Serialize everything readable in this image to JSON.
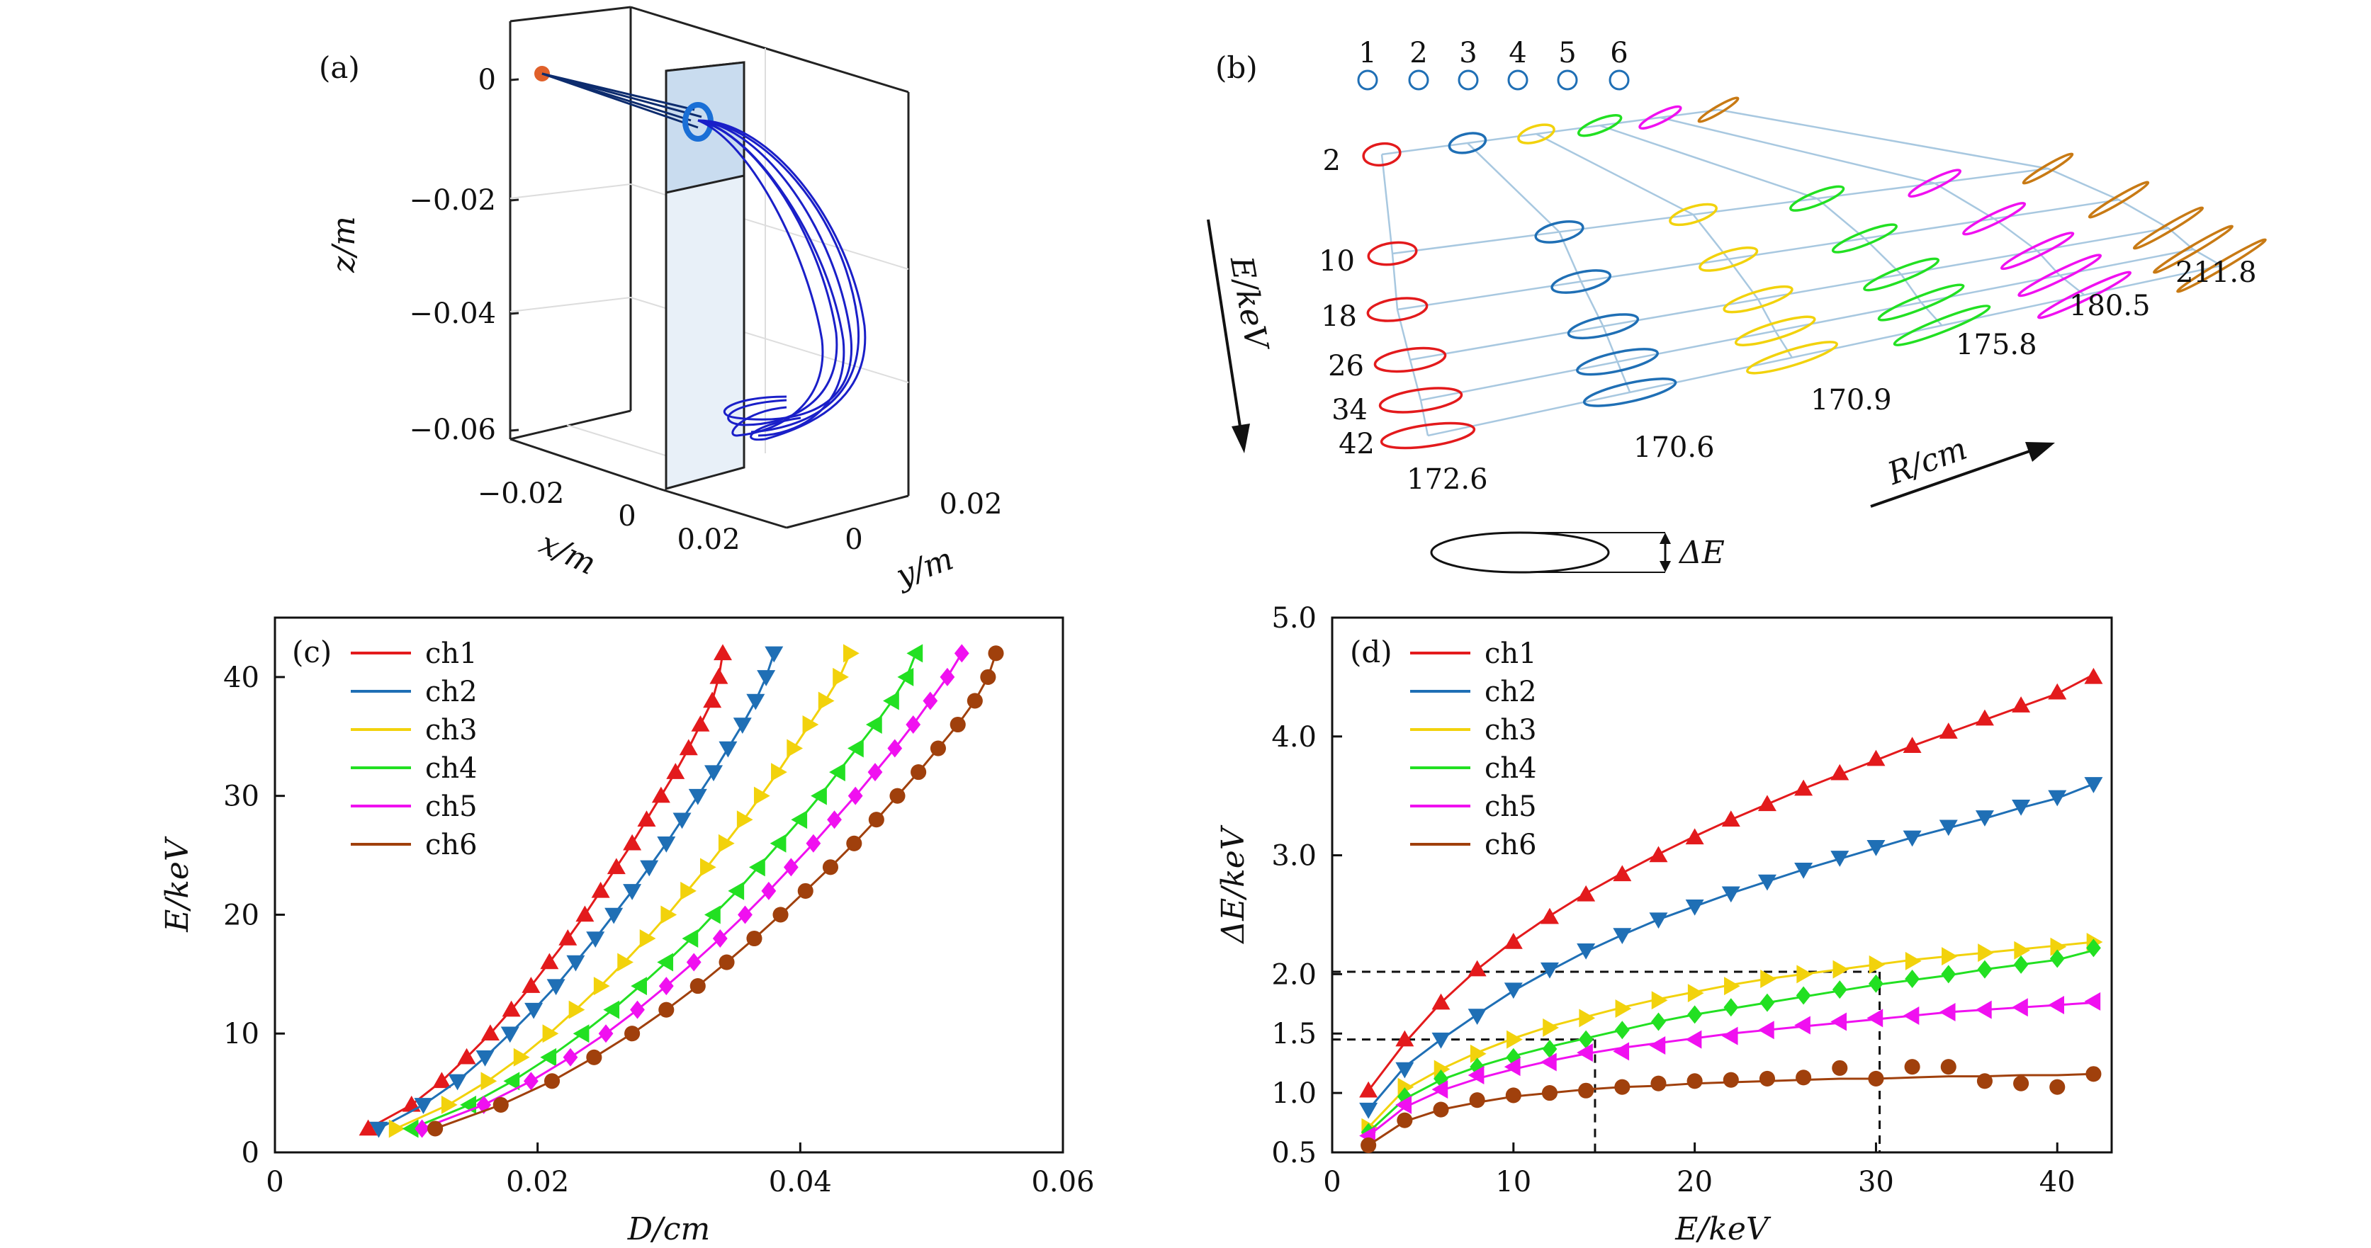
{
  "chart_data": [
    {
      "panel": "a",
      "type": "3d-trajectory",
      "panel_label": "(a)",
      "xlabel": "x/m",
      "ylabel": "y/m",
      "zlabel": "z/m",
      "z_ticks": [
        "0",
        "−0.02",
        "−0.04",
        "−0.06"
      ],
      "x_ticks": [
        "−0.02",
        "0",
        "0.02"
      ],
      "y_ticks": [
        "0.02",
        "0"
      ],
      "colors": {
        "source": "#e0602a",
        "lines": "#1a1fc8",
        "plate": "#dbe8f5"
      }
    },
    {
      "panel": "b",
      "type": "diagram",
      "panel_label": "(b)",
      "channels": [
        "1",
        "2",
        "3",
        "4",
        "5",
        "6"
      ],
      "energy_labels": [
        "2",
        "10",
        "18",
        "26",
        "34",
        "42"
      ],
      "radius_labels": [
        "172.6",
        "170.6",
        "170.9",
        "175.8",
        "180.5",
        "211.8"
      ],
      "energy_axis_label": "E/keV",
      "radius_axis_label": "R/cm",
      "delta_label": "ΔE",
      "channel_colors": [
        "#e31a1c",
        "#1f6fb5",
        "#f2d20c",
        "#22e022",
        "#f010f0",
        "#c87a14"
      ]
    },
    {
      "panel": "c",
      "type": "line",
      "panel_label": "(c)",
      "xlabel": "D/cm",
      "ylabel": "E/keV",
      "xlim": [
        0,
        0.06
      ],
      "ylim": [
        0,
        45
      ],
      "x_ticks": [
        "0",
        "0.02",
        "0.04",
        "0.06"
      ],
      "y_ticks": [
        "0",
        "10",
        "20",
        "30",
        "40"
      ],
      "x_tick_values": [
        0,
        0.02,
        0.04,
        0.06
      ],
      "y_tick_values": [
        0,
        10,
        20,
        30,
        40
      ],
      "E": [
        2,
        4,
        6,
        8,
        10,
        12,
        14,
        16,
        18,
        20,
        22,
        24,
        26,
        28,
        30,
        32,
        34,
        36,
        38,
        40,
        42
      ],
      "series": [
        {
          "name": "ch1",
          "color": "#e31a1c",
          "marker": "triangle-up",
          "D": [
            0.0071,
            0.0104,
            0.0127,
            0.0146,
            0.0164,
            0.018,
            0.0195,
            0.0209,
            0.0223,
            0.0236,
            0.0248,
            0.026,
            0.0272,
            0.0283,
            0.0294,
            0.0305,
            0.0315,
            0.0324,
            0.0333,
            0.0338,
            0.0341
          ]
        },
        {
          "name": "ch2",
          "color": "#1f6fb5",
          "marker": "triangle-down",
          "D": [
            0.0079,
            0.0113,
            0.0139,
            0.016,
            0.0179,
            0.0197,
            0.0214,
            0.0229,
            0.0244,
            0.0258,
            0.0272,
            0.0285,
            0.0298,
            0.031,
            0.0322,
            0.0334,
            0.0345,
            0.0356,
            0.0366,
            0.0374,
            0.038
          ]
        },
        {
          "name": "ch3",
          "color": "#f2d20c",
          "marker": "triangle-right",
          "D": [
            0.0092,
            0.0132,
            0.0162,
            0.0187,
            0.0209,
            0.0229,
            0.0248,
            0.0266,
            0.0283,
            0.0299,
            0.0314,
            0.0329,
            0.0343,
            0.0357,
            0.037,
            0.0383,
            0.0395,
            0.0407,
            0.0419,
            0.043,
            0.0438
          ]
        },
        {
          "name": "ch4",
          "color": "#22e022",
          "marker": "triangle-left",
          "D": [
            0.0104,
            0.0148,
            0.0181,
            0.0209,
            0.0234,
            0.0257,
            0.0278,
            0.0298,
            0.0317,
            0.0334,
            0.0352,
            0.0368,
            0.0384,
            0.04,
            0.0415,
            0.0429,
            0.0443,
            0.0457,
            0.047,
            0.0481,
            0.0488
          ]
        },
        {
          "name": "ch5",
          "color": "#f010f0",
          "marker": "diamond",
          "D": [
            0.0112,
            0.0159,
            0.0195,
            0.0225,
            0.0252,
            0.0276,
            0.0298,
            0.0319,
            0.0339,
            0.0358,
            0.0376,
            0.0393,
            0.041,
            0.0426,
            0.0442,
            0.0457,
            0.0472,
            0.0486,
            0.0499,
            0.0512,
            0.0523
          ]
        },
        {
          "name": "ch6",
          "color": "#a0400c",
          "marker": "circle",
          "D": [
            0.0122,
            0.0172,
            0.0211,
            0.0243,
            0.0272,
            0.0298,
            0.0322,
            0.0344,
            0.0365,
            0.0385,
            0.0404,
            0.0423,
            0.0441,
            0.0458,
            0.0474,
            0.049,
            0.0505,
            0.052,
            0.0533,
            0.0543,
            0.0549
          ]
        }
      ]
    },
    {
      "panel": "d",
      "type": "line",
      "panel_label": "(d)",
      "xlabel": "E/keV",
      "ylabel": "ΔE/keV",
      "xlim": [
        0,
        43
      ],
      "ylim": [
        0.5,
        5.0
      ],
      "x_ticks": [
        "0",
        "10",
        "20",
        "30",
        "40"
      ],
      "y_ticks": [
        "0.5",
        "1.0",
        "1.5",
        "2.0",
        "3.0",
        "4.0",
        "5.0"
      ],
      "x_tick_values": [
        0,
        10,
        20,
        30,
        40
      ],
      "y_tick_values": [
        0.5,
        1.0,
        1.5,
        2.0,
        3.0,
        4.0,
        5.0
      ],
      "E": [
        2,
        4,
        6,
        8,
        10,
        12,
        14,
        16,
        18,
        20,
        22,
        24,
        26,
        28,
        30,
        32,
        34,
        36,
        38,
        40,
        42
      ],
      "series": [
        {
          "name": "ch1",
          "color": "#e31a1c",
          "marker": "triangle-up",
          "values": [
            1.02,
            1.45,
            1.76,
            2.04,
            2.27,
            2.48,
            2.67,
            2.84,
            3.0,
            3.15,
            3.3,
            3.43,
            3.56,
            3.69,
            3.81,
            3.92,
            4.04,
            4.15,
            4.26,
            4.37,
            4.5
          ]
        },
        {
          "name": "ch2",
          "color": "#1f6fb5",
          "marker": "triangle-down",
          "values": [
            0.86,
            1.2,
            1.45,
            1.65,
            1.87,
            2.04,
            2.2,
            2.33,
            2.46,
            2.57,
            2.68,
            2.78,
            2.88,
            2.98,
            3.07,
            3.15,
            3.24,
            3.32,
            3.41,
            3.49,
            3.6
          ]
        },
        {
          "name": "ch3",
          "color": "#f2d20c",
          "marker": "triangle-right",
          "values": [
            0.71,
            1.05,
            1.2,
            1.33,
            1.45,
            1.55,
            1.63,
            1.71,
            1.78,
            1.84,
            1.9,
            1.96,
            2.0,
            2.04,
            2.08,
            2.11,
            2.15,
            2.18,
            2.2,
            2.23,
            2.27
          ]
        },
        {
          "name": "ch4",
          "color": "#22e022",
          "marker": "diamond",
          "values": [
            0.67,
            0.97,
            1.12,
            1.22,
            1.3,
            1.37,
            1.45,
            1.53,
            1.6,
            1.66,
            1.72,
            1.76,
            1.82,
            1.87,
            1.92,
            1.96,
            2.0,
            2.04,
            2.08,
            2.13,
            2.22
          ]
        },
        {
          "name": "ch5",
          "color": "#f010f0",
          "marker": "triangle-left",
          "values": [
            0.64,
            0.9,
            1.03,
            1.15,
            1.22,
            1.26,
            1.34,
            1.35,
            1.4,
            1.45,
            1.48,
            1.53,
            1.57,
            1.6,
            1.63,
            1.65,
            1.68,
            1.7,
            1.72,
            1.74,
            1.77
          ]
        },
        {
          "name": "ch6",
          "color": "#a0400c",
          "marker": "circle",
          "values": [
            0.56,
            0.77,
            0.86,
            0.94,
            0.98,
            1.0,
            1.02,
            1.05,
            1.08,
            1.1,
            1.11,
            1.12,
            1.13,
            1.21,
            1.12,
            1.22,
            1.22,
            1.1,
            1.08,
            1.05,
            1.16
          ]
        }
      ],
      "fit": {
        "ch1": [
          1.02,
          1.42,
          1.76,
          2.04,
          2.28,
          2.49,
          2.68,
          2.85,
          3.01,
          3.16,
          3.3,
          3.43,
          3.56,
          3.68,
          3.8,
          3.92,
          4.03,
          4.14,
          4.25,
          4.36,
          4.52
        ],
        "ch2": [
          0.86,
          1.22,
          1.45,
          1.66,
          1.86,
          2.03,
          2.19,
          2.33,
          2.46,
          2.57,
          2.68,
          2.78,
          2.88,
          2.97,
          3.06,
          3.15,
          3.23,
          3.31,
          3.4,
          3.48,
          3.6
        ],
        "ch3": [
          0.71,
          1.03,
          1.2,
          1.34,
          1.46,
          1.56,
          1.64,
          1.72,
          1.79,
          1.85,
          1.91,
          1.96,
          2.0,
          2.04,
          2.08,
          2.12,
          2.15,
          2.18,
          2.21,
          2.24,
          2.27
        ],
        "ch4": [
          0.67,
          0.95,
          1.11,
          1.22,
          1.31,
          1.39,
          1.46,
          1.53,
          1.6,
          1.66,
          1.71,
          1.76,
          1.81,
          1.86,
          1.91,
          1.95,
          1.99,
          2.04,
          2.08,
          2.12,
          2.2
        ],
        "ch5": [
          0.64,
          0.88,
          1.02,
          1.12,
          1.2,
          1.27,
          1.33,
          1.38,
          1.42,
          1.46,
          1.5,
          1.53,
          1.56,
          1.59,
          1.62,
          1.65,
          1.68,
          1.7,
          1.72,
          1.74,
          1.76
        ],
        "ch6": [
          0.56,
          0.76,
          0.86,
          0.92,
          0.97,
          1.0,
          1.03,
          1.05,
          1.06,
          1.08,
          1.09,
          1.1,
          1.11,
          1.12,
          1.12,
          1.13,
          1.14,
          1.14,
          1.15,
          1.15,
          1.16
        ]
      },
      "reference_lines": [
        {
          "y": 2.02,
          "x": 30.2
        },
        {
          "y": 1.45,
          "x": 14.5
        }
      ]
    }
  ]
}
